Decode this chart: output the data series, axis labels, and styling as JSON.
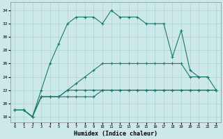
{
  "x": [
    0,
    1,
    2,
    3,
    4,
    5,
    6,
    7,
    8,
    9,
    10,
    11,
    12,
    13,
    14,
    15,
    16,
    17,
    18,
    19,
    20,
    21,
    22,
    23
  ],
  "line1": [
    19,
    19,
    18,
    22,
    26,
    29,
    32,
    33,
    33,
    33,
    32,
    34,
    33,
    33,
    33,
    32,
    32,
    32,
    27,
    31,
    25,
    24,
    24,
    null
  ],
  "line2": [
    19,
    19,
    18,
    21,
    21,
    21,
    21,
    21,
    21,
    21,
    22,
    22,
    22,
    22,
    22,
    22,
    22,
    22,
    22,
    22,
    22,
    22,
    22,
    22
  ],
  "line3": [
    19,
    19,
    18,
    21,
    21,
    21,
    22,
    22,
    22,
    22,
    22,
    22,
    22,
    22,
    22,
    22,
    22,
    22,
    22,
    22,
    22,
    22,
    22,
    22
  ],
  "line4": [
    19,
    19,
    18,
    21,
    21,
    21,
    22,
    23,
    24,
    25,
    26,
    26,
    26,
    26,
    26,
    26,
    26,
    26,
    26,
    26,
    24,
    24,
    24,
    22
  ],
  "color": "#1a7a6a",
  "bg_color": "#cce8e8",
  "grid_color": "#aad4d4",
  "ylabel_vals": [
    18,
    20,
    22,
    24,
    26,
    28,
    30,
    32,
    34
  ],
  "xlabel": "Humidex (Indice chaleur)",
  "ylim": [
    17.2,
    35.2
  ],
  "xlim": [
    -0.5,
    23.5
  ]
}
